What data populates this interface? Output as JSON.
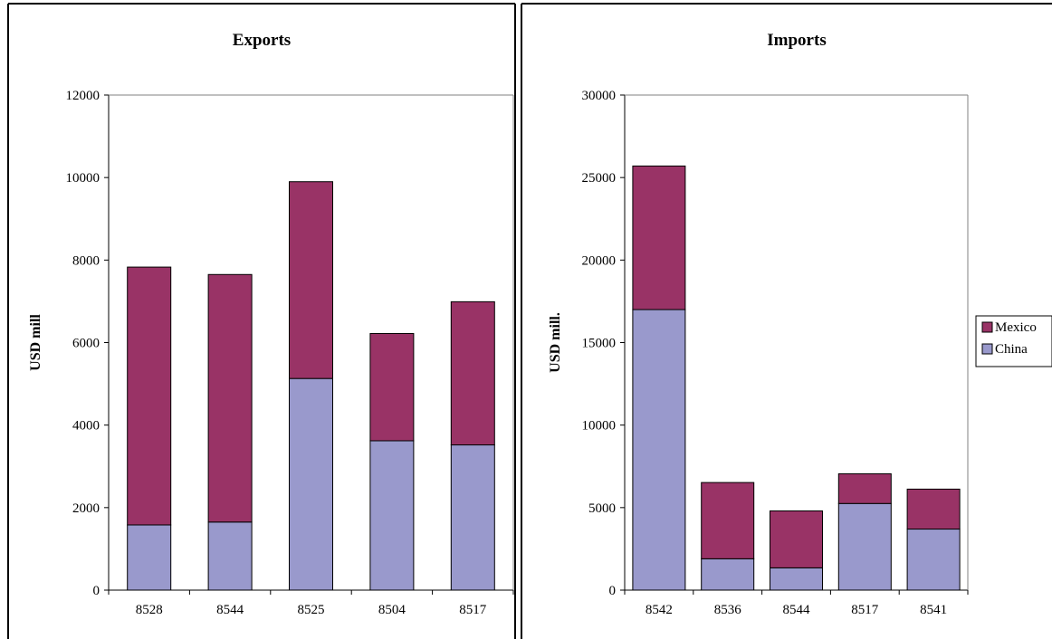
{
  "chart_data": [
    {
      "type": "bar",
      "stacked": true,
      "title": "Exports",
      "xlabel": "",
      "ylabel": "USD mill",
      "categories": [
        "8528",
        "8544",
        "8525",
        "8504",
        "8517"
      ],
      "series": [
        {
          "name": "China",
          "color": "#9999cc",
          "values": [
            1580,
            1650,
            5130,
            3620,
            3520
          ]
        },
        {
          "name": "Mexico",
          "color": "#993366",
          "values": [
            6250,
            6000,
            4770,
            2600,
            3470
          ]
        }
      ],
      "ylim": [
        0,
        12000
      ],
      "yticks": [
        0,
        2000,
        4000,
        6000,
        8000,
        10000,
        12000
      ],
      "grid": false,
      "legend": "none"
    },
    {
      "type": "bar",
      "stacked": true,
      "title": "Imports",
      "xlabel": "",
      "ylabel": "USD mill.",
      "categories": [
        "8542",
        "8536",
        "8544",
        "8517",
        "8541"
      ],
      "series": [
        {
          "name": "China",
          "color": "#9999cc",
          "values": [
            17000,
            1900,
            1350,
            5250,
            3700
          ]
        },
        {
          "name": "Mexico",
          "color": "#993366",
          "values": [
            8700,
            4620,
            3450,
            1800,
            2420
          ]
        }
      ],
      "ylim": [
        0,
        30000
      ],
      "yticks": [
        0,
        5000,
        10000,
        15000,
        20000,
        25000,
        30000
      ],
      "grid": false,
      "legend": "right"
    }
  ],
  "legend": {
    "items": [
      {
        "name": "Mexico",
        "color": "#993366"
      },
      {
        "name": "China",
        "color": "#9999cc"
      }
    ]
  }
}
